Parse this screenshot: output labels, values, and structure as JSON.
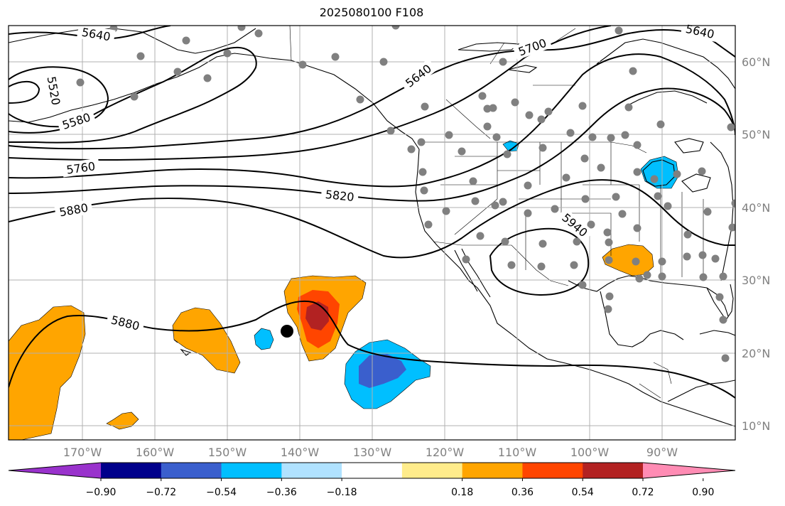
{
  "title": "2025080100 F108",
  "lat_labels": [
    "60°N",
    "50°N",
    "40°N",
    "30°N",
    "20°N",
    "10°N"
  ],
  "lon_labels": [
    "170°W",
    "160°W",
    "150°W",
    "140°W",
    "130°W",
    "120°W",
    "110°W",
    "100°W",
    "90°W"
  ],
  "contour_labels": [
    "5640",
    "5520",
    "5580",
    "5760",
    "5880",
    "5820",
    "5640",
    "5700",
    "5640",
    "5940",
    "5880"
  ],
  "colorbar": {
    "ticks": [
      "−0.90",
      "−0.72",
      "−0.54",
      "−0.36",
      "−0.18",
      "0.18",
      "0.36",
      "0.54",
      "0.72",
      "0.90"
    ],
    "colors": [
      "#9932cc",
      "#00008b",
      "#3a5fcd",
      "#00bfff",
      "#b0e2ff",
      "#ffffff",
      "#ffec8b",
      "#ffa500",
      "#ff4500",
      "#b22222",
      "#ff8cb4"
    ]
  },
  "fill_colors": {
    "orange": "#ffa500",
    "red": "#ff4500",
    "darkred": "#b22222",
    "blue": "#00bfff",
    "darkblue": "#3a5fcd"
  }
}
